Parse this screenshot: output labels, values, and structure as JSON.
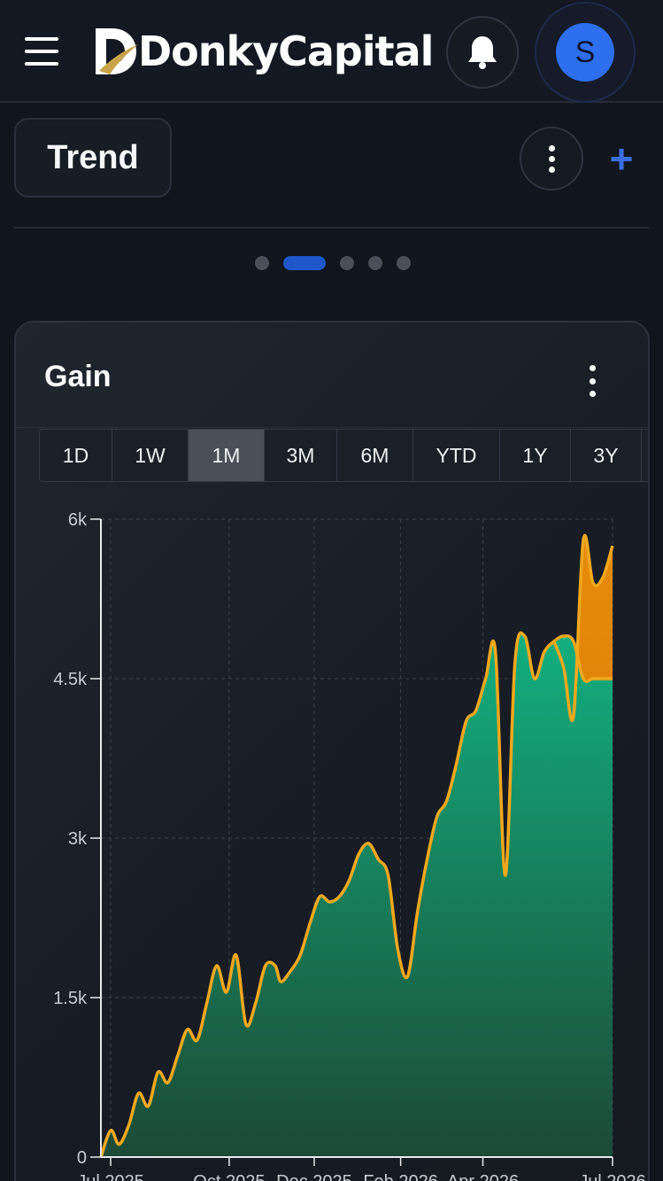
{
  "header": {
    "brand": "DonkyCapital",
    "avatar_initial": "S"
  },
  "toolbar": {
    "tab_label": "Trend",
    "add_label": "+"
  },
  "pager": {
    "count": 5,
    "active_index": 1
  },
  "card": {
    "title": "Gain",
    "ranges": [
      "1D",
      "1W",
      "1M",
      "3M",
      "6M",
      "YTD",
      "1Y",
      "3Y"
    ],
    "active_range": "1M"
  },
  "colors": {
    "accent": "#2e6ff0",
    "line": "#f0a81e",
    "area_green": "#0fa878",
    "area_orange": "#e88b0a",
    "background": "#11151d"
  },
  "chart_data": {
    "type": "area",
    "x_tick_labels": [
      "Jul 2025",
      "Oct 2025",
      "Dec 2025",
      "Feb 2026",
      "Apr 2026",
      "Jul 2026"
    ],
    "y_tick_labels": [
      "0",
      "1.5k",
      "3k",
      "4.5k",
      "6k"
    ],
    "ylim": [
      0,
      6000
    ],
    "grid": true,
    "series": [
      {
        "x": [
          "2025-07-01",
          "2025-07-08",
          "2025-07-14",
          "2025-07-21",
          "2025-07-28",
          "2025-08-04",
          "2025-08-11",
          "2025-08-18",
          "2025-08-25",
          "2025-09-01",
          "2025-09-08",
          "2025-09-15",
          "2025-09-22",
          "2025-09-29",
          "2025-10-06",
          "2025-10-13",
          "2025-10-20",
          "2025-10-27",
          "2025-11-03",
          "2025-11-07",
          "2025-11-14",
          "2025-11-21",
          "2025-11-28",
          "2025-12-05",
          "2025-12-12",
          "2025-12-19",
          "2025-12-26",
          "2026-01-02",
          "2026-01-09",
          "2026-01-16",
          "2026-01-23",
          "2026-01-30",
          "2026-02-06",
          "2026-02-13",
          "2026-02-20",
          "2026-02-27",
          "2026-03-06",
          "2026-03-13",
          "2026-03-20",
          "2026-03-27",
          "2026-04-03",
          "2026-04-10",
          "2026-04-17",
          "2026-04-24",
          "2026-05-01",
          "2026-05-08",
          "2026-05-15",
          "2026-05-22",
          "2026-05-29",
          "2026-06-05",
          "2026-06-12",
          "2026-06-19",
          "2026-06-26",
          "2026-07-03"
        ],
        "values": [
          0,
          250,
          120,
          300,
          600,
          480,
          800,
          700,
          950,
          1200,
          1100,
          1450,
          1800,
          1550,
          1900,
          1250,
          1450,
          1800,
          1800,
          1650,
          1750,
          1900,
          2200,
          2450,
          2400,
          2450,
          2600,
          2850,
          2950,
          2800,
          2650,
          1950,
          1700,
          2300,
          2800,
          3200,
          3350,
          3700,
          4100,
          4200,
          4500,
          4750,
          2650,
          4650,
          4900,
          4500,
          4750,
          4850,
          4900,
          4850,
          4500,
          4500,
          4500,
          4500
        ]
      },
      {
        "x": [
          "2026-05-22",
          "2026-05-29",
          "2026-06-05",
          "2026-06-12",
          "2026-06-19",
          "2026-06-26",
          "2026-07-03"
        ],
        "values": [
          4850,
          4600,
          4150,
          5800,
          5400,
          5450,
          5750
        ]
      }
    ]
  }
}
